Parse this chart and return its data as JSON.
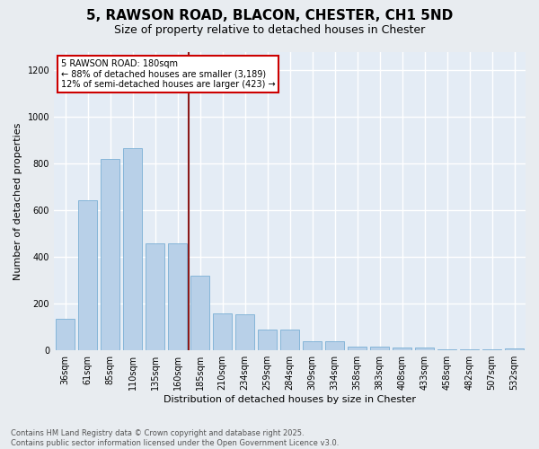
{
  "title_line1": "5, RAWSON ROAD, BLACON, CHESTER, CH1 5ND",
  "title_line2": "Size of property relative to detached houses in Chester",
  "xlabel": "Distribution of detached houses by size in Chester",
  "ylabel": "Number of detached properties",
  "categories": [
    "36sqm",
    "61sqm",
    "85sqm",
    "110sqm",
    "135sqm",
    "160sqm",
    "185sqm",
    "210sqm",
    "234sqm",
    "259sqm",
    "284sqm",
    "309sqm",
    "334sqm",
    "358sqm",
    "383sqm",
    "408sqm",
    "433sqm",
    "458sqm",
    "482sqm",
    "507sqm",
    "532sqm"
  ],
  "values": [
    135,
    645,
    820,
    865,
    460,
    460,
    320,
    160,
    155,
    90,
    90,
    38,
    38,
    18,
    18,
    13,
    13,
    5,
    5,
    5,
    10
  ],
  "bar_color": "#b8d0e8",
  "bar_edge_color": "#7aafd4",
  "vline_color": "#8b1a1a",
  "annotation_text": "5 RAWSON ROAD: 180sqm\n← 88% of detached houses are smaller (3,189)\n12% of semi-detached houses are larger (423) →",
  "annotation_box_color": "#ffffff",
  "annotation_box_edge": "#cc0000",
  "ylim": [
    0,
    1280
  ],
  "yticks": [
    0,
    200,
    400,
    600,
    800,
    1000,
    1200
  ],
  "footer_text": "Contains HM Land Registry data © Crown copyright and database right 2025.\nContains public sector information licensed under the Open Government Licence v3.0.",
  "bg_color": "#e8ecf0",
  "plot_bg_color": "#e4ecf5",
  "grid_color": "#ffffff",
  "title_fontsize": 11,
  "subtitle_fontsize": 9,
  "ylabel_fontsize": 8,
  "xlabel_fontsize": 8,
  "tick_fontsize": 7,
  "ann_fontsize": 7,
  "footer_fontsize": 6
}
